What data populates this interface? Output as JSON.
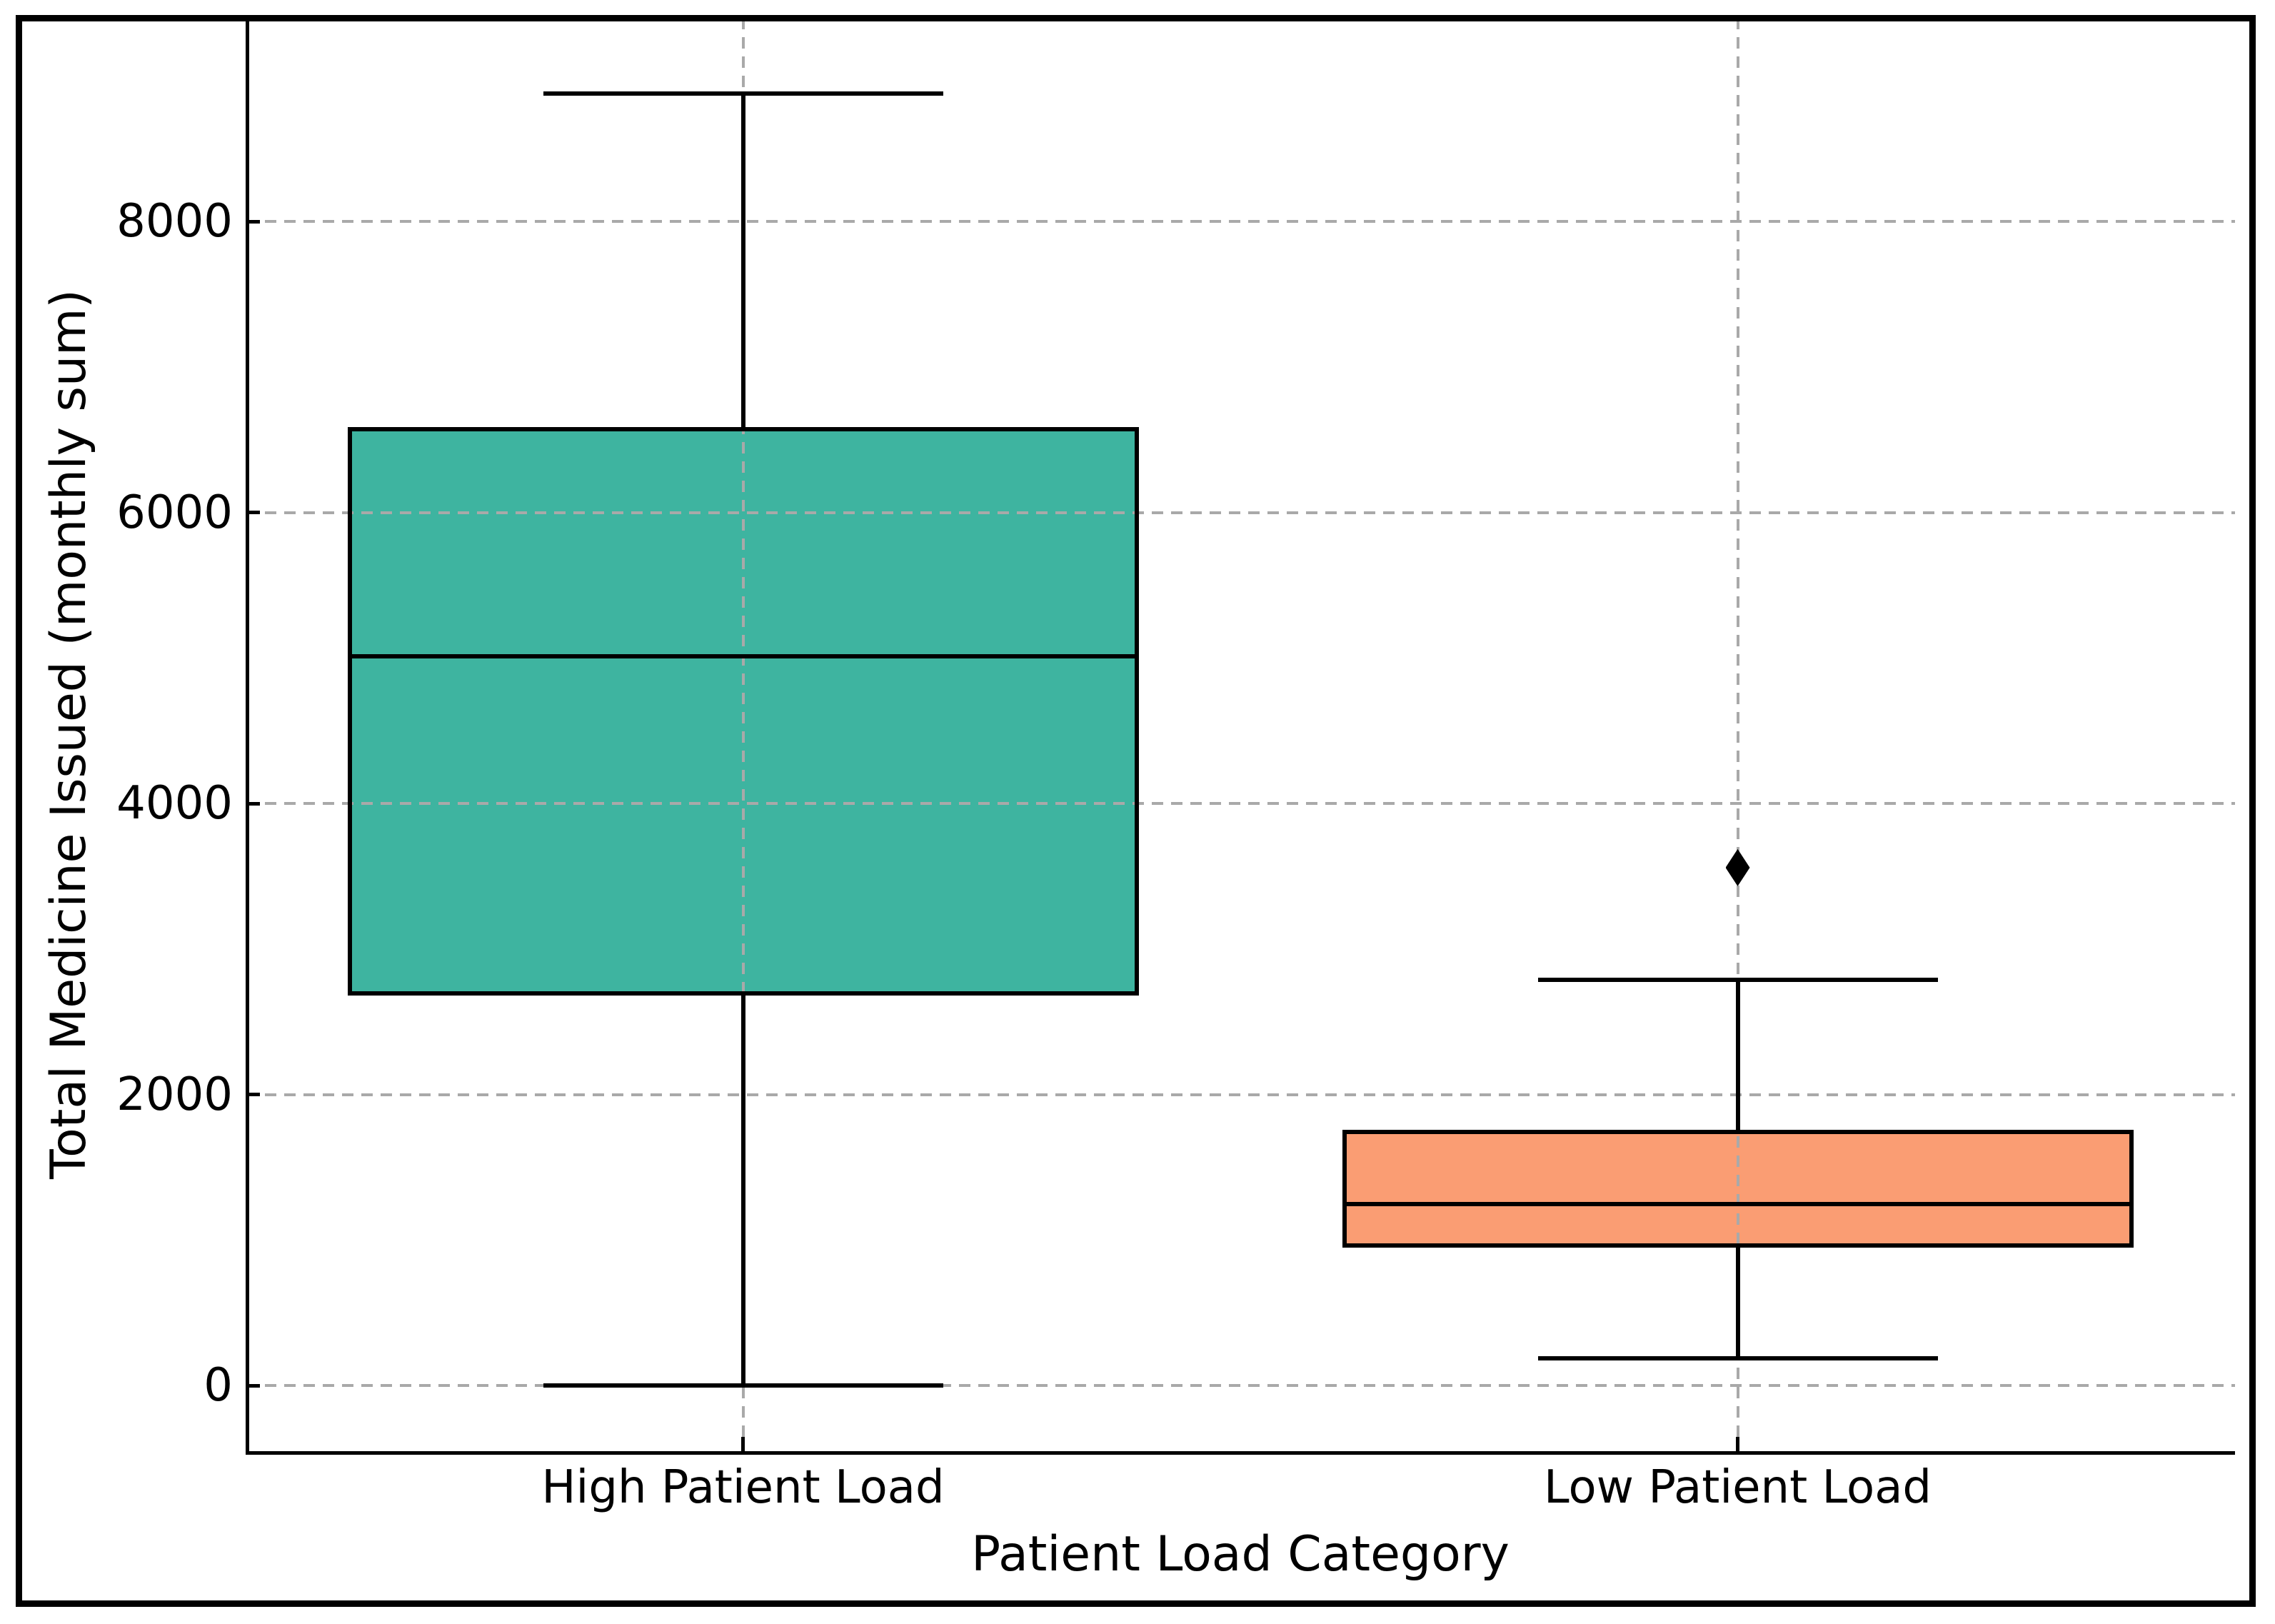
{
  "chart_data": {
    "type": "box",
    "title": "",
    "xlabel": "Patient Load Category",
    "ylabel": "Total Medicine Issued (monthly sum)",
    "categories": [
      "High Patient Load",
      "Low Patient Load"
    ],
    "y_ticks": [
      0,
      2000,
      4000,
      6000,
      8000
    ],
    "y_tick_labels": [
      "0",
      "2000",
      "4000",
      "6000",
      "8000"
    ],
    "ylim": [
      -450,
      9400
    ],
    "grid": {
      "horizontal": true,
      "vertical": true,
      "style": "dashed",
      "color": "#a9a9a9"
    },
    "legend": null,
    "series": [
      {
        "category": "High Patient Load",
        "whisker_low": 0,
        "q1": 2680,
        "median": 5010,
        "q3": 6590,
        "whisker_high": 8880,
        "outliers": [],
        "fill_color": "#3EB4A0"
      },
      {
        "category": "Low Patient Load",
        "whisker_low": 190,
        "q1": 950,
        "median": 1250,
        "q3": 1760,
        "whisker_high": 2790,
        "outliers": [
          3560
        ],
        "fill_color": "#FA9D73"
      }
    ],
    "stroke_color": "#000000",
    "background_color": "#ffffff"
  }
}
